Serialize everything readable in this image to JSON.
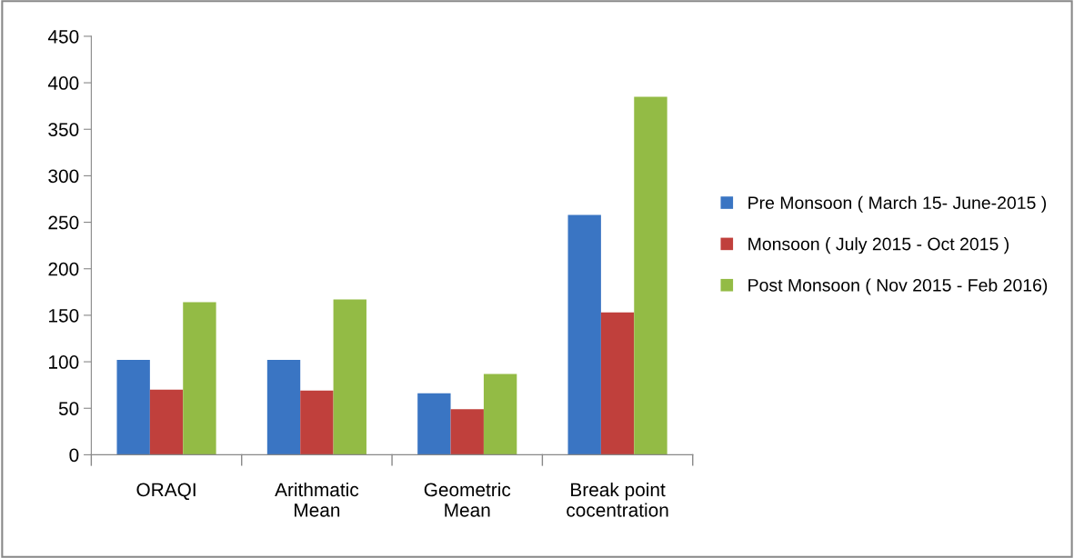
{
  "chart_data": {
    "type": "bar",
    "categories": [
      "ORAQI",
      "Arithmatic\nMean",
      "Geometric\nMean",
      "Break point\ncocentration"
    ],
    "series": [
      {
        "name": "Pre Monsoon ( March 15- June-2015 )",
        "color": "#3a75c3",
        "values": [
          102,
          102,
          66,
          258
        ]
      },
      {
        "name": "Monsoon ( July 2015 - Oct 2015 )",
        "color": "#c0403c",
        "values": [
          70,
          69,
          49,
          153
        ]
      },
      {
        "name": "Post Monsoon ( Nov 2015 - Feb 2016)",
        "color": "#93bb45",
        "values": [
          164,
          167,
          87,
          385
        ]
      }
    ],
    "ylim": [
      0,
      450
    ],
    "yticks": [
      0,
      50,
      100,
      150,
      200,
      250,
      300,
      350,
      400,
      450
    ],
    "grid": false,
    "legend": "right"
  }
}
